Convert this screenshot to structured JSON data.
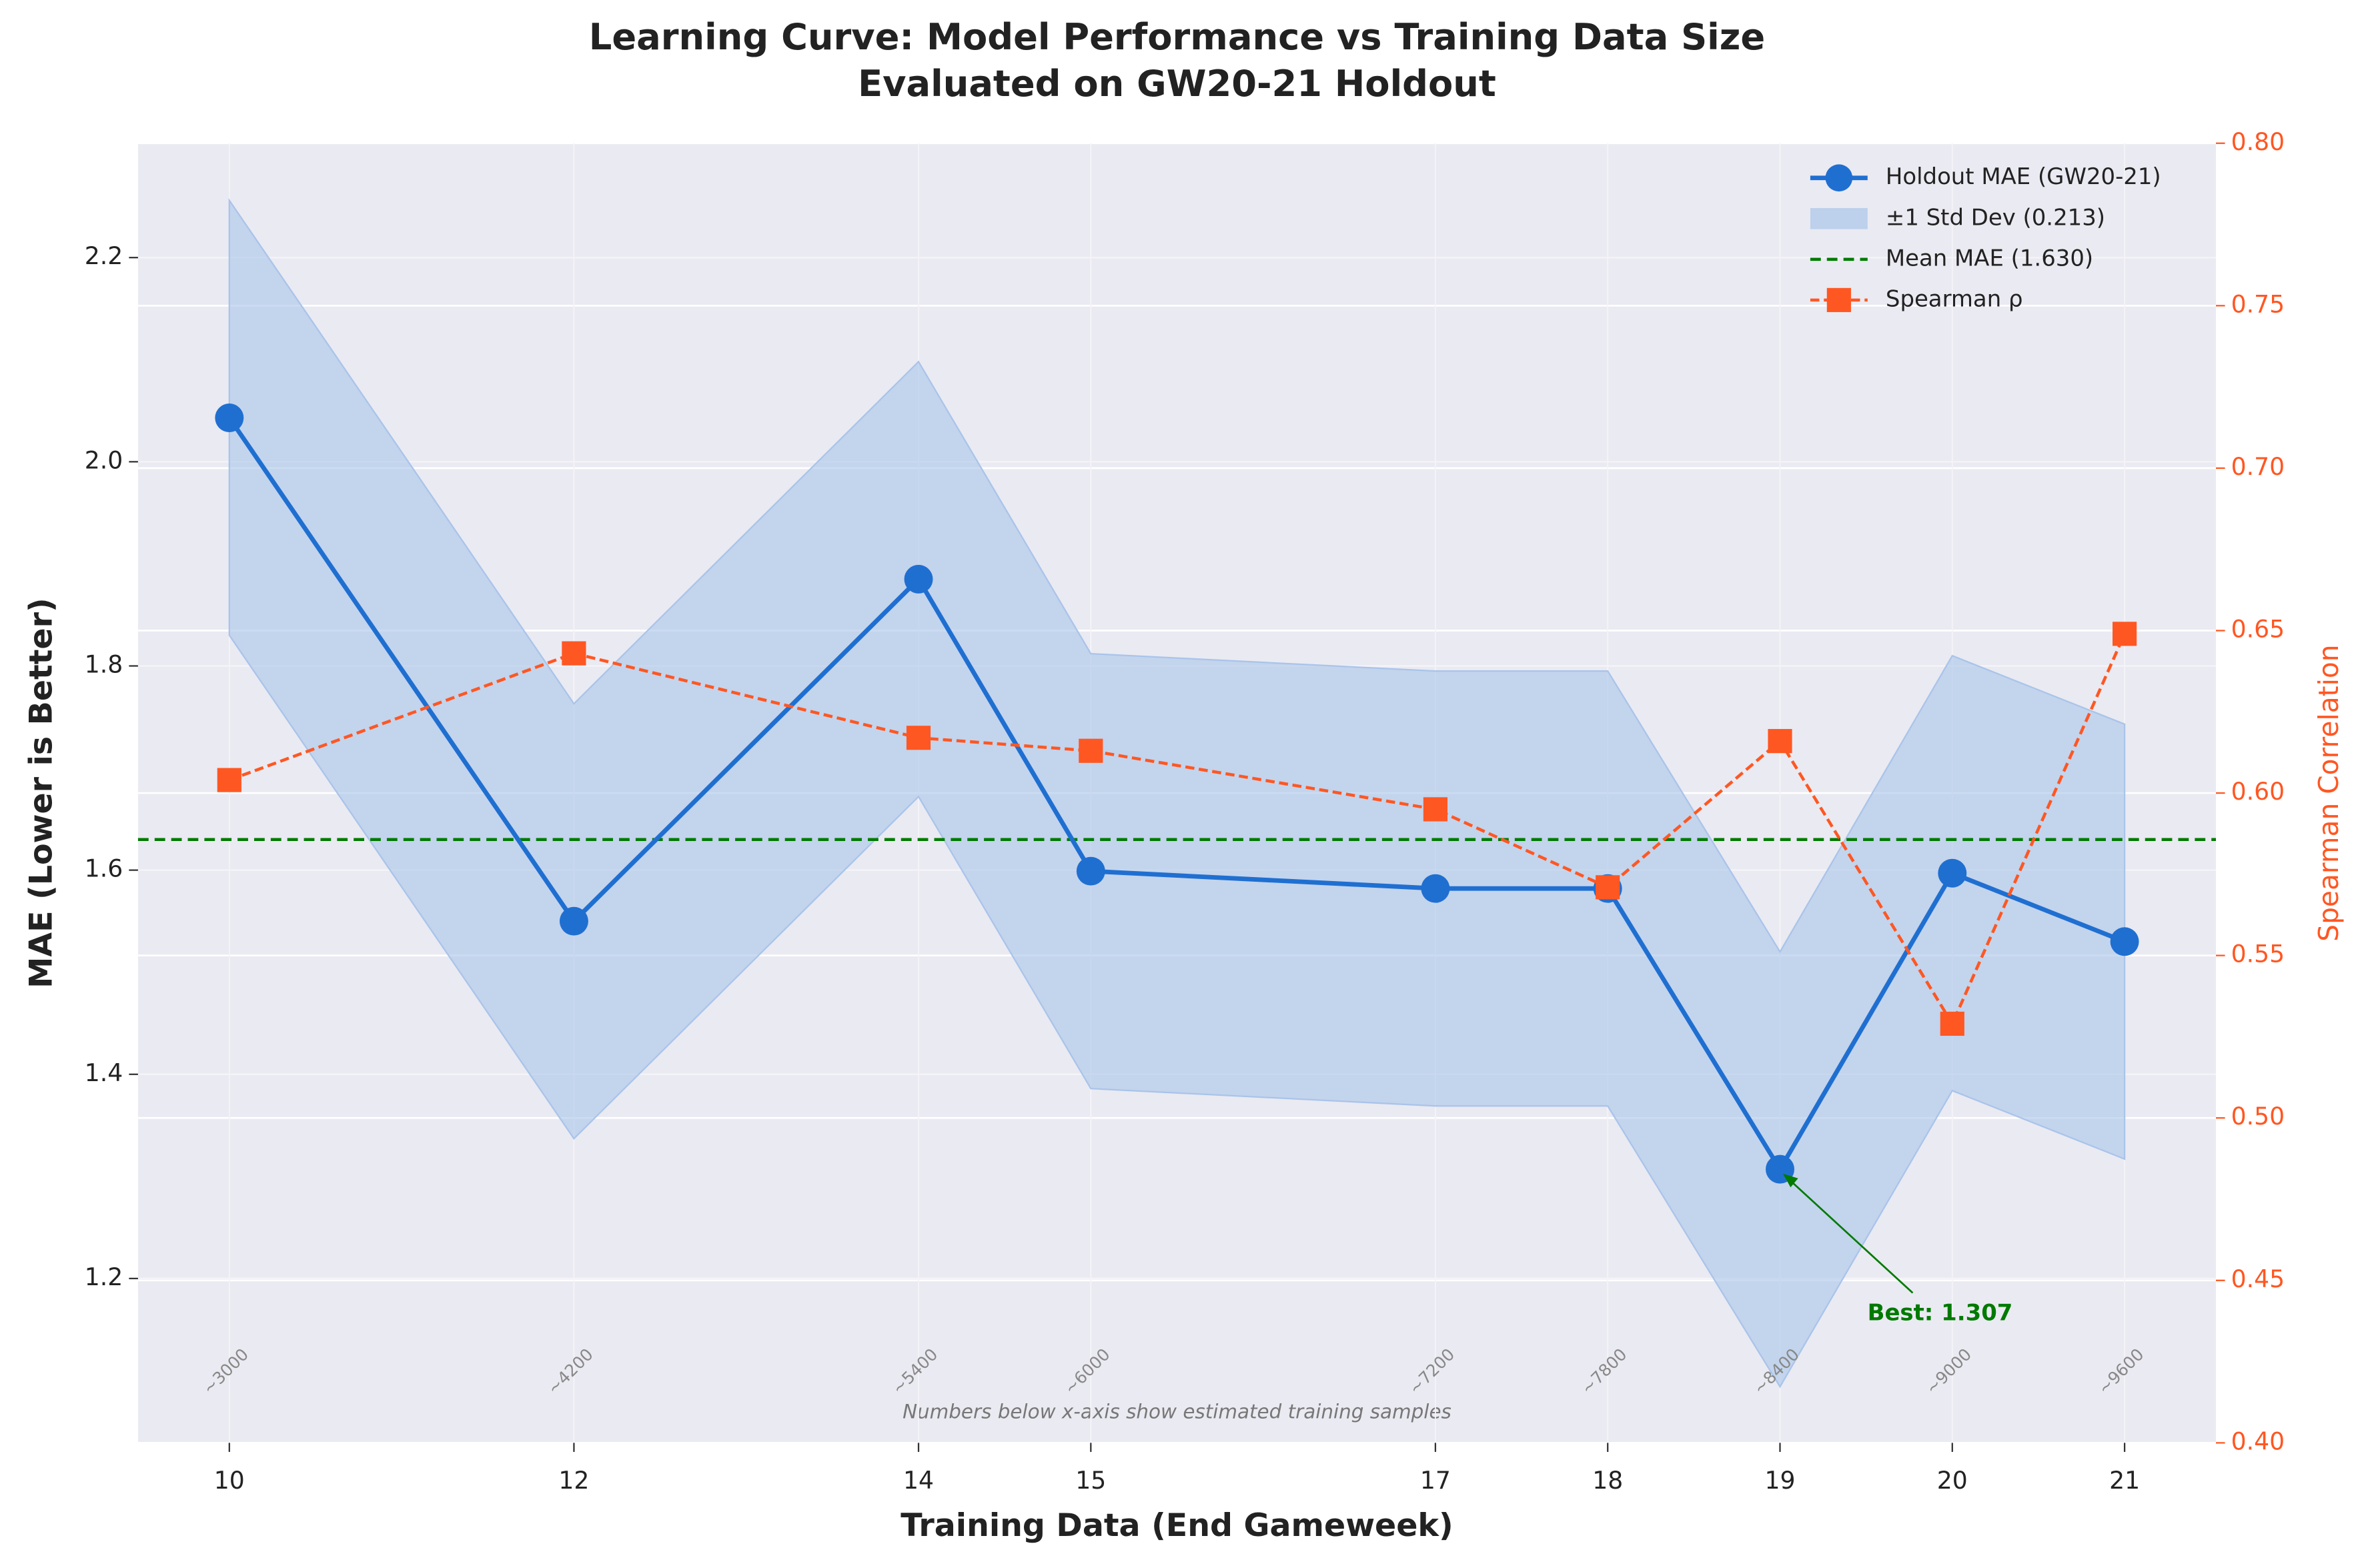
{
  "chart_data": {
    "type": "line",
    "title": "Learning Curve: Model Performance vs Training Data Size",
    "subtitle": "Evaluated on GW20-21 Holdout",
    "x_label": "Training Data (End Gameweek)",
    "y_label": "MAE (Lower is Better)",
    "y2_label": "Spearman Correlation",
    "x": [
      10,
      12,
      14,
      15,
      17,
      18,
      19,
      20,
      21
    ],
    "xlim": [
      9.47,
      21.53
    ],
    "xticks": [
      10,
      12,
      14,
      15,
      17,
      18,
      19,
      20,
      21
    ],
    "ylim": [
      1.039,
      2.312
    ],
    "yticks": [
      1.2,
      1.4,
      1.6,
      1.8,
      {
        "value": 2,
        "label": "2.0"
      },
      2.2
    ],
    "y2lim": [
      0.4,
      0.8
    ],
    "y2ticks": [
      {
        "value": 0.4,
        "label": "0.40"
      },
      0.45,
      {
        "value": 0.5,
        "label": "0.50"
      },
      0.55,
      {
        "value": 0.6,
        "label": "0.60"
      },
      0.65,
      {
        "value": 0.7,
        "label": "0.70"
      },
      0.75,
      {
        "value": 0.8,
        "label": "0.80"
      }
    ],
    "series": [
      {
        "name": "Holdout MAE (GW20-21)",
        "color": "#1f6fd1",
        "values": [
          2.043,
          1.55,
          1.885,
          1.599,
          1.582,
          1.582,
          1.307,
          1.597,
          1.53
        ]
      },
      {
        "name": "Spearman ρ",
        "color": "#ff5722",
        "axis": "y2",
        "values": [
          0.604,
          0.643,
          0.617,
          0.613,
          0.595,
          0.571,
          0.616,
          0.529,
          0.649
        ]
      }
    ],
    "band": {
      "name": "±1 Std Dev (0.213)",
      "std": 0.213,
      "color": "#a9c4ea"
    },
    "mean_line": {
      "name": "Mean MAE (1.630)",
      "value": 1.63,
      "color": "#007a00"
    },
    "sample_labels": [
      "~3000",
      "~4200",
      "~5400",
      "~6000",
      "~7200",
      "~7800",
      "~8400",
      "~9000",
      "~9600"
    ],
    "note": "Numbers below x-axis show estimated training samples",
    "best": {
      "label": "Best: 1.307",
      "x": 19,
      "y": 1.307
    },
    "legend": "upper right",
    "grid": true
  }
}
